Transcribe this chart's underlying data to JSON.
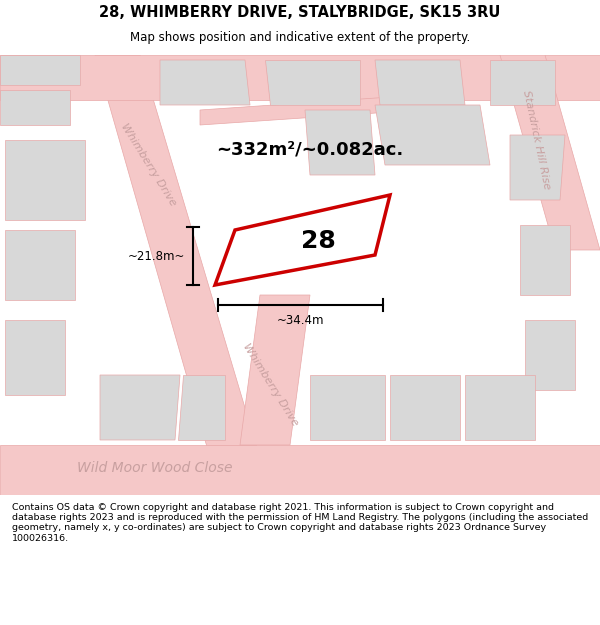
{
  "title_line1": "28, WHIMBERRY DRIVE, STALYBRIDGE, SK15 3RU",
  "title_line2": "Map shows position and indicative extent of the property.",
  "footer": "Contains OS data © Crown copyright and database right 2021. This information is subject to Crown copyright and database rights 2023 and is reproduced with the permission of HM Land Registry. The polygons (including the associated geometry, namely x, y co-ordinates) are subject to Crown copyright and database rights 2023 Ordnance Survey 100026316.",
  "area_label": "~332m²/~0.082ac.",
  "plot_number": "28",
  "width_label": "~34.4m",
  "height_label": "~21.8m~",
  "bg_color": "#ffffff",
  "map_bg": "#f2f2f2",
  "road_color": "#f5c8c8",
  "road_outline": "#e8a8a8",
  "building_color": "#d8d8d8",
  "plot_fill": "#ffffff",
  "plot_edge": "#cc0000",
  "street_color": "#c8a0a0",
  "street_label_wd1": "Whimberry Drive",
  "street_label_wd2": "Whimberry Drive",
  "street_label_wmc": "Wild Moor Wood Close",
  "street_label_shr": "Standrick Hill Rise"
}
